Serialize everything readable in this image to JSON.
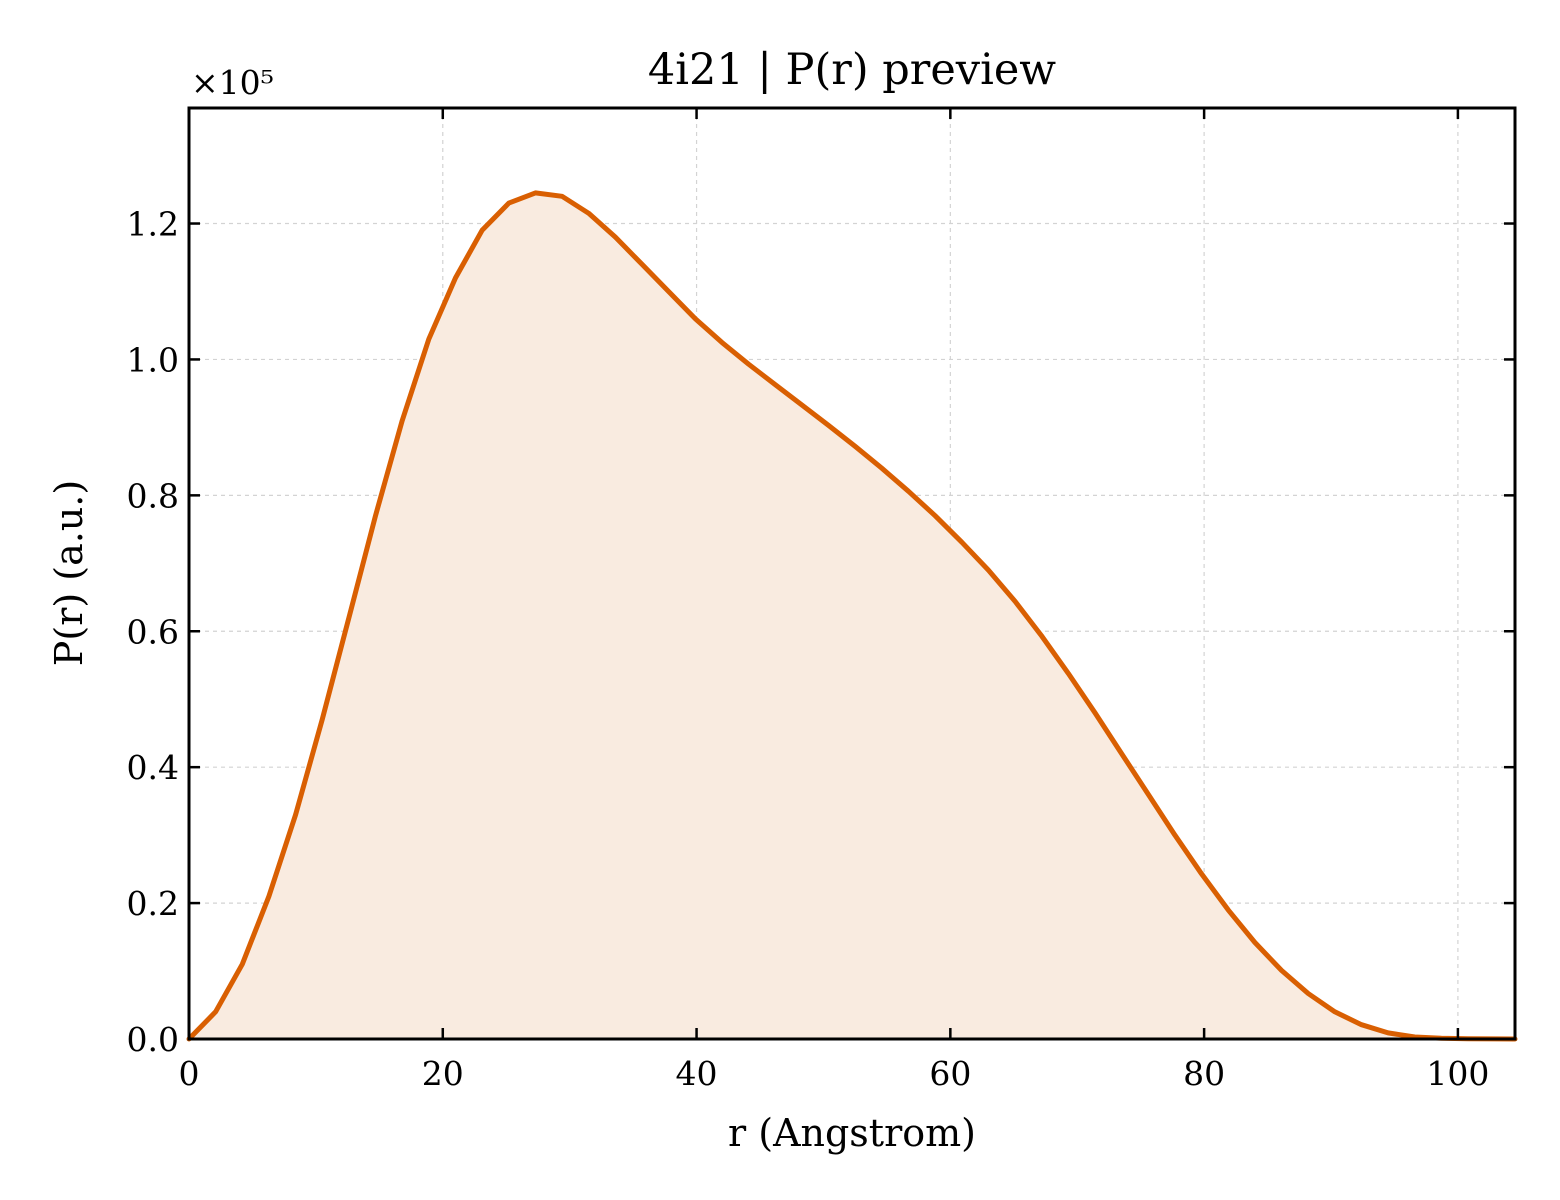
{
  "chart_data": {
    "type": "area",
    "title": "4i21 | P(r) preview",
    "xlabel": "r (Angstrom)",
    "ylabel": "P(r) (a.u.)",
    "y_scale_label": "×10⁵",
    "y_multiplier": 100000,
    "xlim": [
      0,
      104.5
    ],
    "ylim": [
      0,
      1.37
    ],
    "x_ticks": [
      0,
      20,
      40,
      60,
      80,
      100
    ],
    "x_tick_labels": [
      "0",
      "20",
      "40",
      "60",
      "80",
      "100"
    ],
    "y_ticks": [
      0.0,
      0.2,
      0.4,
      0.6,
      0.8,
      1.0,
      1.2
    ],
    "y_tick_labels": [
      "0.0",
      "0.2",
      "0.4",
      "0.6",
      "0.8",
      "1.0",
      "1.2"
    ],
    "grid": true,
    "colors": {
      "line": "#d95f02",
      "fill": "#f9ebe0",
      "grid": "#d3d3d3"
    },
    "series": [
      {
        "x": [
          0,
          2.1,
          4.2,
          6.3,
          8.4,
          10.5,
          12.6,
          14.7,
          16.8,
          18.9,
          21.0,
          23.1,
          25.2,
          27.3,
          29.4,
          31.5,
          33.6,
          35.7,
          37.8,
          39.9,
          42.0,
          44.1,
          46.2,
          48.3,
          50.4,
          52.5,
          54.6,
          56.7,
          58.8,
          60.9,
          63.0,
          65.1,
          67.2,
          69.3,
          71.4,
          73.5,
          75.6,
          77.7,
          79.8,
          81.9,
          84.0,
          86.1,
          88.2,
          90.3,
          92.4,
          94.5,
          96.6,
          98.7,
          100.8,
          102.9,
          104.5
        ],
        "y": [
          0.0,
          0.04,
          0.11,
          0.21,
          0.33,
          0.47,
          0.62,
          0.77,
          0.91,
          1.03,
          1.12,
          1.19,
          1.23,
          1.245,
          1.24,
          1.215,
          1.18,
          1.14,
          1.1,
          1.06,
          1.025,
          0.993,
          0.963,
          0.933,
          0.903,
          0.872,
          0.84,
          0.806,
          0.77,
          0.731,
          0.69,
          0.644,
          0.593,
          0.538,
          0.48,
          0.42,
          0.36,
          0.3,
          0.243,
          0.19,
          0.142,
          0.101,
          0.067,
          0.04,
          0.021,
          0.009,
          0.003,
          0.001,
          0.0005,
          0.0002,
          0.0
        ]
      }
    ]
  }
}
